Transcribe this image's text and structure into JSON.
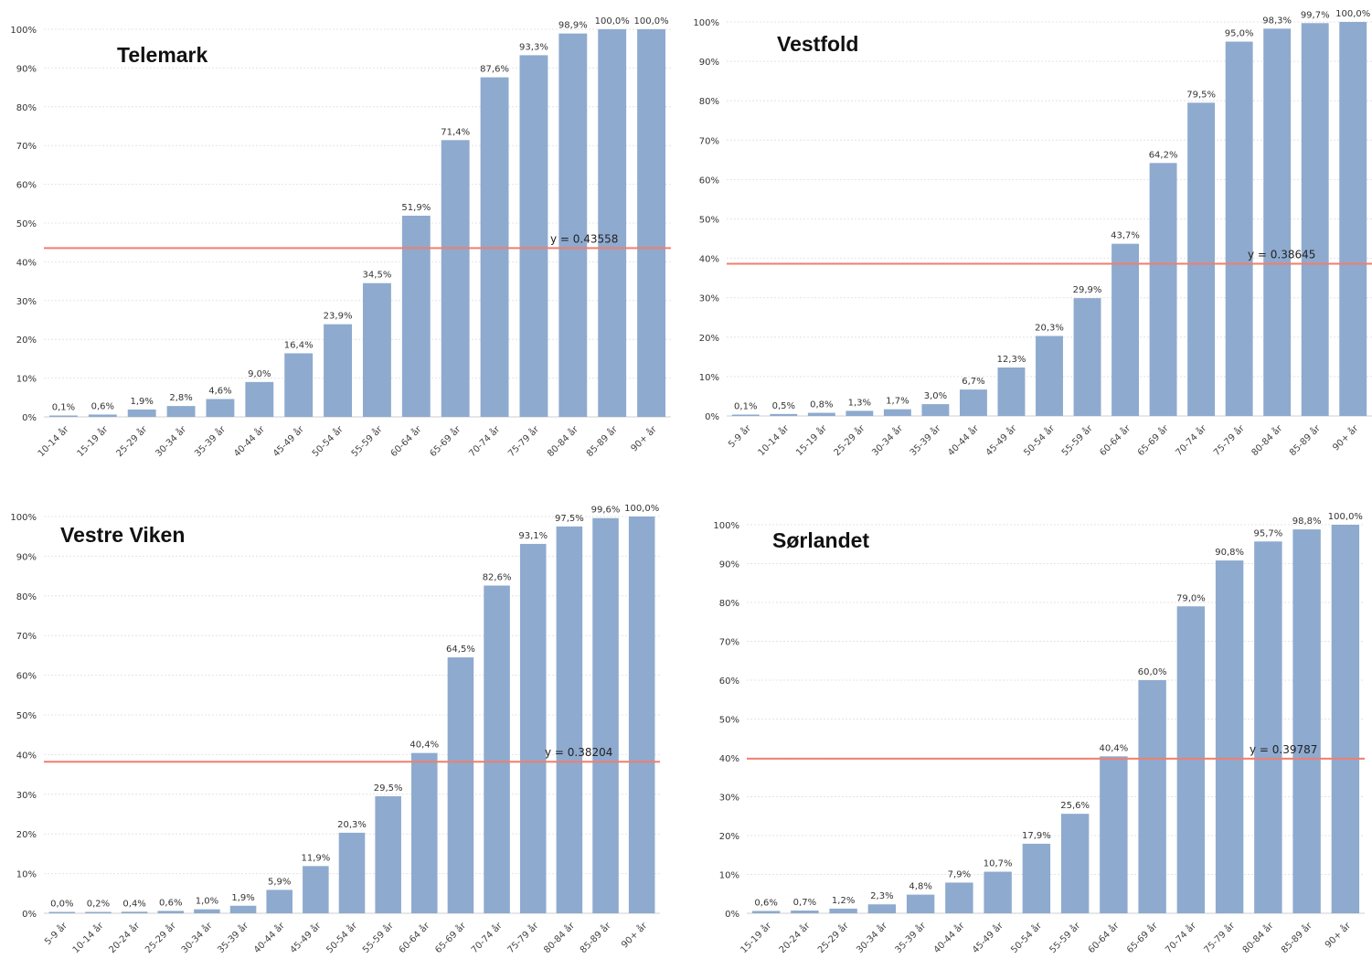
{
  "chart_data": [
    {
      "type": "bar",
      "title": "Telemark",
      "categories": [
        "10-14 år",
        "15-19 år",
        "25-29 år",
        "30-34 år",
        "35-39 år",
        "40-44 år",
        "45-49 år",
        "50-54 år",
        "55-59 år",
        "60-64 år",
        "65-69 år",
        "70-74 år",
        "75-79 år",
        "80-84 år",
        "85-89 år",
        "90+ år"
      ],
      "values": [
        0.1,
        0.6,
        1.9,
        2.8,
        4.6,
        9.0,
        16.4,
        23.9,
        34.5,
        51.9,
        71.4,
        87.6,
        93.3,
        98.9,
        100.0,
        100.0
      ],
      "value_labels": [
        "0,1%",
        "0,6%",
        "1,9%",
        "2,8%",
        "4,6%",
        "9,0%",
        "16,4%",
        "23,9%",
        "34,5%",
        "51,9%",
        "71,4%",
        "87,6%",
        "93,3%",
        "98,9%",
        "100,0%",
        "100,0%"
      ],
      "yticks": [
        "0%",
        "10%",
        "20%",
        "30%",
        "40%",
        "50%",
        "60%",
        "70%",
        "80%",
        "90%",
        "100%"
      ],
      "ylim": [
        0,
        100
      ],
      "reference_line": {
        "value": 43.558,
        "label": "y = 0.43558"
      },
      "grid": true
    },
    {
      "type": "bar",
      "title": "Vestfold",
      "categories": [
        "5-9 år",
        "10-14 år",
        "15-19 år",
        "25-29 år",
        "30-34 år",
        "35-39 år",
        "40-44 år",
        "45-49 år",
        "50-54 år",
        "55-59 år",
        "60-64 år",
        "65-69 år",
        "70-74 år",
        "75-79 år",
        "80-84 år",
        "85-89 år",
        "90+ år"
      ],
      "values": [
        0.1,
        0.5,
        0.8,
        1.3,
        1.7,
        3.0,
        6.7,
        12.3,
        20.3,
        29.9,
        43.7,
        64.2,
        79.5,
        95.0,
        98.3,
        99.7,
        100.0
      ],
      "value_labels": [
        "0,1%",
        "0,5%",
        "0,8%",
        "1,3%",
        "1,7%",
        "3,0%",
        "6,7%",
        "12,3%",
        "20,3%",
        "29,9%",
        "43,7%",
        "64,2%",
        "79,5%",
        "95,0%",
        "98,3%",
        "99,7%",
        "100,0%"
      ],
      "yticks": [
        "0%",
        "10%",
        "20%",
        "30%",
        "40%",
        "50%",
        "60%",
        "70%",
        "80%",
        "90%",
        "100%"
      ],
      "ylim": [
        0,
        100
      ],
      "reference_line": {
        "value": 38.645,
        "label": "y = 0.38645"
      },
      "grid": true
    },
    {
      "type": "bar",
      "title": "Vestre Viken",
      "categories": [
        "5-9 år",
        "10-14 år",
        "20-24 år",
        "25-29 år",
        "30-34 år",
        "35-39 år",
        "40-44 år",
        "45-49 år",
        "50-54 år",
        "55-59 år",
        "60-64 år",
        "65-69 år",
        "70-74 år",
        "75-79 år",
        "80-84 år",
        "85-89 år",
        "90+ år"
      ],
      "values": [
        0.0,
        0.2,
        0.4,
        0.6,
        1.0,
        1.9,
        5.9,
        11.9,
        20.3,
        29.5,
        40.4,
        64.5,
        82.6,
        93.1,
        97.5,
        99.6,
        100.0
      ],
      "value_labels": [
        "0,0%",
        "0,2%",
        "0,4%",
        "0,6%",
        "1,0%",
        "1,9%",
        "5,9%",
        "11,9%",
        "20,3%",
        "29,5%",
        "40,4%",
        "64,5%",
        "82,6%",
        "93,1%",
        "97,5%",
        "99,6%",
        "100,0%"
      ],
      "yticks": [
        "0%",
        "10%",
        "20%",
        "30%",
        "40%",
        "50%",
        "60%",
        "70%",
        "80%",
        "90%",
        "100%"
      ],
      "ylim": [
        0,
        100
      ],
      "reference_line": {
        "value": 38.204,
        "label": "y = 0.38204"
      },
      "grid": true
    },
    {
      "type": "bar",
      "title": "Sørlandet",
      "categories": [
        "15-19 år",
        "20-24 år",
        "25-29 år",
        "30-34 år",
        "35-39 år",
        "40-44 år",
        "45-49 år",
        "50-54 år",
        "55-59 år",
        "60-64 år",
        "65-69 år",
        "70-74 år",
        "75-79 år",
        "80-84 år",
        "85-89 år",
        "90+ år"
      ],
      "values": [
        0.6,
        0.7,
        1.2,
        2.3,
        4.8,
        7.9,
        10.7,
        17.9,
        25.6,
        40.4,
        60.0,
        79.0,
        90.8,
        95.7,
        98.8,
        100.0
      ],
      "value_labels": [
        "0,6%",
        "0,7%",
        "1,2%",
        "2,3%",
        "4,8%",
        "7,9%",
        "10,7%",
        "17,9%",
        "25,6%",
        "40,4%",
        "60,0%",
        "79,0%",
        "90,8%",
        "95,7%",
        "98,8%",
        "100,0%"
      ],
      "yticks": [
        "0%",
        "10%",
        "20%",
        "30%",
        "40%",
        "50%",
        "60%",
        "70%",
        "80%",
        "90%",
        "100%"
      ],
      "ylim": [
        0,
        100
      ],
      "reference_line": {
        "value": 39.787,
        "label": "y = 0.39787"
      },
      "grid": true
    }
  ],
  "colors": {
    "bar": "#8eaacf",
    "reference_line": "#f07f6e",
    "grid": "#e4e4e4"
  }
}
